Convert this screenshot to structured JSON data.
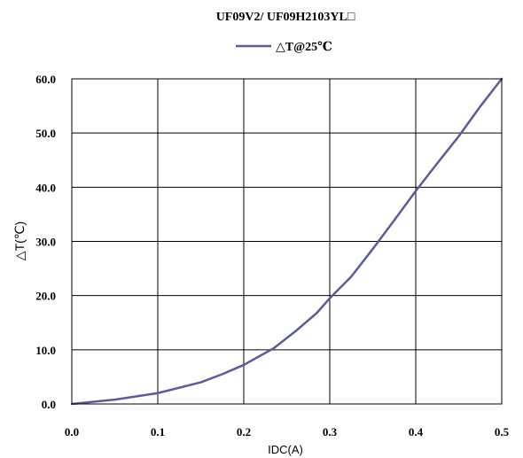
{
  "chart_data": {
    "type": "line",
    "title": "UF09V2/ UF09H2103YL□",
    "xlabel": "IDC(A)",
    "ylabel": "△T(℃)",
    "xlim": [
      0.0,
      0.5
    ],
    "ylim": [
      0.0,
      60.0
    ],
    "x_ticks": [
      "0.0",
      "0.1",
      "0.2",
      "0.3",
      "0.4",
      "0.5"
    ],
    "y_ticks": [
      "0.0",
      "10.0",
      "20.0",
      "30.0",
      "40.0",
      "50.0",
      "60.0"
    ],
    "grid": true,
    "legend_position": "top-center",
    "series": [
      {
        "name": "△T@25℃",
        "color": "#5b5b9c",
        "x": [
          0.0,
          0.05,
          0.1,
          0.15,
          0.175,
          0.2,
          0.235,
          0.26,
          0.285,
          0.3,
          0.325,
          0.35,
          0.375,
          0.4,
          0.425,
          0.45,
          0.475,
          0.5
        ],
        "y": [
          0.0,
          0.8,
          2.0,
          4.0,
          5.5,
          7.2,
          10.3,
          13.4,
          16.8,
          19.5,
          23.5,
          28.6,
          33.9,
          39.3,
          44.4,
          49.4,
          54.9,
          60.0
        ]
      }
    ]
  }
}
